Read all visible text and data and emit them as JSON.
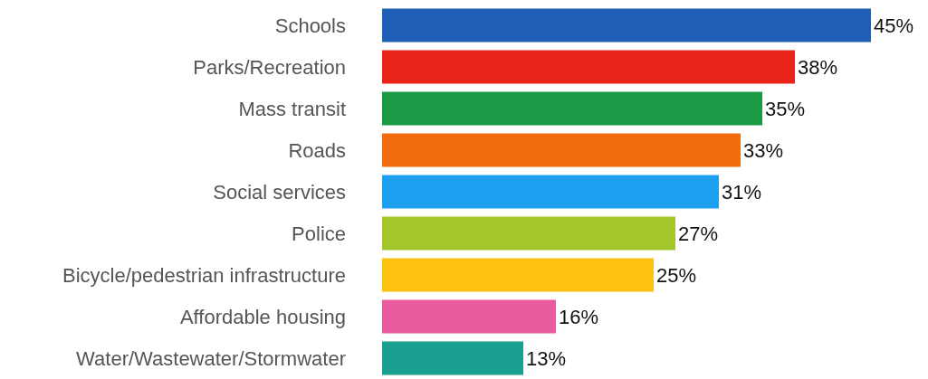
{
  "chart_data": {
    "type": "bar",
    "orientation": "horizontal",
    "categories": [
      "Schools",
      "Parks/Recreation",
      "Mass transit",
      "Roads",
      "Social services",
      "Police",
      "Bicycle/pedestrian infrastructure",
      "Affordable housing",
      "Water/Wastewater/Stormwater"
    ],
    "values": [
      45,
      38,
      35,
      33,
      31,
      27,
      25,
      16,
      13
    ],
    "colors": [
      "#1f5fb5",
      "#e8231a",
      "#1a9a45",
      "#f36b0f",
      "#1e9ff0",
      "#a3c72a",
      "#fcc20f",
      "#e95b9c",
      "#1aa090"
    ],
    "value_labels": [
      "45%",
      "38%",
      "35%",
      "33%",
      "31%",
      "27%",
      "25%",
      "16%",
      "13%"
    ]
  }
}
